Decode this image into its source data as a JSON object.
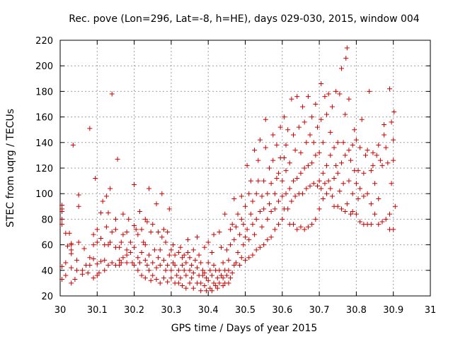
{
  "chart_data": {
    "type": "scatter",
    "title": "Rec. pove (Lon=296, Lat=-8, h=HE), days 029-030, 2015, window 004",
    "xlabel": "GPS time / Days of year 2015",
    "ylabel": "STEC from uqrg / TECUs",
    "xlim": [
      30,
      31
    ],
    "ylim": [
      20,
      220
    ],
    "xticks": [
      "30",
      "30.1",
      "30.2",
      "30.3",
      "30.4",
      "30.5",
      "30.6",
      "30.7",
      "30.8",
      "30.9",
      "31"
    ],
    "yticks": [
      "20",
      "40",
      "60",
      "80",
      "100",
      "120",
      "140",
      "160",
      "180",
      "200",
      "220"
    ],
    "grid": true,
    "marker": "+",
    "color": "#cc0000",
    "points": [
      [
        30.005,
        33
      ],
      [
        30.005,
        43
      ],
      [
        30.005,
        76
      ],
      [
        30.005,
        80
      ],
      [
        30.005,
        86
      ],
      [
        30.005,
        88
      ],
      [
        30.005,
        91
      ],
      [
        30.015,
        36
      ],
      [
        30.015,
        46
      ],
      [
        30.015,
        69
      ],
      [
        30.02,
        59
      ],
      [
        30.025,
        69
      ],
      [
        30.03,
        30
      ],
      [
        30.03,
        42
      ],
      [
        30.03,
        53
      ],
      [
        30.03,
        56
      ],
      [
        30.03,
        60
      ],
      [
        30.03,
        61
      ],
      [
        30.035,
        138
      ],
      [
        30.04,
        33
      ],
      [
        30.045,
        40
      ],
      [
        30.045,
        48
      ],
      [
        30.05,
        62
      ],
      [
        30.05,
        90
      ],
      [
        30.05,
        99
      ],
      [
        30.06,
        37
      ],
      [
        30.06,
        40
      ],
      [
        30.065,
        57
      ],
      [
        30.07,
        44
      ],
      [
        30.075,
        38
      ],
      [
        30.08,
        44
      ],
      [
        30.08,
        50
      ],
      [
        30.08,
        151
      ],
      [
        30.09,
        34
      ],
      [
        30.09,
        49
      ],
      [
        30.09,
        60
      ],
      [
        30.09,
        68
      ],
      [
        30.095,
        112
      ],
      [
        30.1,
        36
      ],
      [
        30.1,
        45
      ],
      [
        30.1,
        62
      ],
      [
        30.1,
        72
      ],
      [
        30.105,
        38
      ],
      [
        30.11,
        47
      ],
      [
        30.11,
        65
      ],
      [
        30.11,
        85
      ],
      [
        30.115,
        94
      ],
      [
        30.12,
        40
      ],
      [
        30.12,
        48
      ],
      [
        30.12,
        60
      ],
      [
        30.125,
        74
      ],
      [
        30.125,
        98
      ],
      [
        30.13,
        44
      ],
      [
        30.13,
        60
      ],
      [
        30.13,
        85
      ],
      [
        30.135,
        62
      ],
      [
        30.135,
        104
      ],
      [
        30.14,
        46
      ],
      [
        30.14,
        70
      ],
      [
        30.14,
        178
      ],
      [
        30.15,
        44
      ],
      [
        30.15,
        58
      ],
      [
        30.15,
        72
      ],
      [
        30.15,
        80
      ],
      [
        30.155,
        127
      ],
      [
        30.16,
        44
      ],
      [
        30.16,
        48
      ],
      [
        30.16,
        58
      ],
      [
        30.165,
        46
      ],
      [
        30.165,
        62
      ],
      [
        30.17,
        50
      ],
      [
        30.17,
        68
      ],
      [
        30.17,
        84
      ],
      [
        30.18,
        46
      ],
      [
        30.18,
        52
      ],
      [
        30.18,
        56
      ],
      [
        30.18,
        70
      ],
      [
        30.185,
        80
      ],
      [
        30.19,
        54
      ],
      [
        30.19,
        62
      ],
      [
        30.195,
        46
      ],
      [
        30.2,
        44
      ],
      [
        30.2,
        58
      ],
      [
        30.2,
        75
      ],
      [
        30.2,
        107
      ],
      [
        30.205,
        72
      ],
      [
        30.21,
        40
      ],
      [
        30.21,
        50
      ],
      [
        30.21,
        68
      ],
      [
        30.215,
        46
      ],
      [
        30.215,
        86
      ],
      [
        30.22,
        36
      ],
      [
        30.22,
        54
      ],
      [
        30.22,
        72
      ],
      [
        30.225,
        62
      ],
      [
        30.23,
        34
      ],
      [
        30.23,
        48
      ],
      [
        30.23,
        60
      ],
      [
        30.23,
        80
      ],
      [
        30.235,
        44
      ],
      [
        30.235,
        78
      ],
      [
        30.24,
        40
      ],
      [
        30.24,
        52
      ],
      [
        30.24,
        104
      ],
      [
        30.245,
        32
      ],
      [
        30.245,
        70
      ],
      [
        30.25,
        36
      ],
      [
        30.25,
        46
      ],
      [
        30.25,
        76
      ],
      [
        30.255,
        56
      ],
      [
        30.26,
        33
      ],
      [
        30.26,
        42
      ],
      [
        30.26,
        92
      ],
      [
        30.265,
        50
      ],
      [
        30.265,
        70
      ],
      [
        30.27,
        30
      ],
      [
        30.27,
        44
      ],
      [
        30.27,
        56
      ],
      [
        30.275,
        66
      ],
      [
        30.275,
        100
      ],
      [
        30.28,
        34
      ],
      [
        30.28,
        48
      ],
      [
        30.28,
        72
      ],
      [
        30.285,
        40
      ],
      [
        30.285,
        62
      ],
      [
        30.29,
        31
      ],
      [
        30.29,
        44
      ],
      [
        30.29,
        70
      ],
      [
        30.295,
        52
      ],
      [
        30.295,
        88
      ],
      [
        30.3,
        34
      ],
      [
        30.3,
        40
      ],
      [
        30.3,
        56
      ],
      [
        30.305,
        46
      ],
      [
        30.305,
        60
      ],
      [
        30.31,
        30
      ],
      [
        30.31,
        44
      ],
      [
        30.31,
        52
      ],
      [
        30.315,
        36
      ],
      [
        30.32,
        30
      ],
      [
        30.32,
        40
      ],
      [
        30.32,
        54
      ],
      [
        30.325,
        34
      ],
      [
        30.325,
        58
      ],
      [
        30.33,
        28
      ],
      [
        30.33,
        44
      ],
      [
        30.33,
        50
      ],
      [
        30.335,
        40
      ],
      [
        30.335,
        52
      ],
      [
        30.34,
        26
      ],
      [
        30.34,
        36
      ],
      [
        30.34,
        46
      ],
      [
        30.345,
        54
      ],
      [
        30.345,
        64
      ],
      [
        30.35,
        30
      ],
      [
        30.35,
        40
      ],
      [
        30.35,
        50
      ],
      [
        30.355,
        34
      ],
      [
        30.355,
        44
      ],
      [
        30.36,
        26
      ],
      [
        30.36,
        38
      ],
      [
        30.36,
        56
      ],
      [
        30.365,
        48
      ],
      [
        30.37,
        30
      ],
      [
        30.37,
        42
      ],
      [
        30.37,
        66
      ],
      [
        30.375,
        36
      ],
      [
        30.375,
        52
      ],
      [
        30.38,
        24
      ],
      [
        30.38,
        30
      ],
      [
        30.38,
        46
      ],
      [
        30.385,
        36
      ],
      [
        30.385,
        40
      ],
      [
        30.39,
        28
      ],
      [
        30.39,
        38
      ],
      [
        30.39,
        58
      ],
      [
        30.395,
        24
      ],
      [
        30.395,
        34
      ],
      [
        30.4,
        32
      ],
      [
        30.4,
        46
      ],
      [
        30.4,
        62
      ],
      [
        30.405,
        26
      ],
      [
        30.405,
        40
      ],
      [
        30.41,
        24
      ],
      [
        30.41,
        36
      ],
      [
        30.41,
        54
      ],
      [
        30.415,
        30
      ],
      [
        30.415,
        44
      ],
      [
        30.415,
        68
      ],
      [
        30.42,
        28
      ],
      [
        30.42,
        40
      ],
      [
        30.425,
        26
      ],
      [
        30.425,
        34
      ],
      [
        30.43,
        30
      ],
      [
        30.43,
        40
      ],
      [
        30.43,
        70
      ],
      [
        30.435,
        36
      ],
      [
        30.435,
        58
      ],
      [
        30.44,
        28
      ],
      [
        30.44,
        34
      ],
      [
        30.44,
        46
      ],
      [
        30.445,
        30
      ],
      [
        30.445,
        40
      ],
      [
        30.445,
        84
      ],
      [
        30.45,
        36
      ],
      [
        30.45,
        56
      ],
      [
        30.455,
        30
      ],
      [
        30.455,
        40
      ],
      [
        30.455,
        48
      ],
      [
        30.46,
        34
      ],
      [
        30.46,
        60
      ],
      [
        30.46,
        72
      ],
      [
        30.465,
        38
      ],
      [
        30.465,
        76
      ],
      [
        30.47,
        44
      ],
      [
        30.47,
        64
      ],
      [
        30.47,
        96
      ],
      [
        30.475,
        46
      ],
      [
        30.475,
        74
      ],
      [
        30.48,
        54
      ],
      [
        30.48,
        84
      ],
      [
        30.485,
        44
      ],
      [
        30.485,
        68
      ],
      [
        30.49,
        50
      ],
      [
        30.49,
        80
      ],
      [
        30.49,
        98
      ],
      [
        30.495,
        60
      ],
      [
        30.495,
        76
      ],
      [
        30.5,
        48
      ],
      [
        30.5,
        66
      ],
      [
        30.5,
        90
      ],
      [
        30.505,
        72
      ],
      [
        30.505,
        122
      ],
      [
        30.51,
        50
      ],
      [
        30.51,
        64
      ],
      [
        30.51,
        100
      ],
      [
        30.515,
        84
      ],
      [
        30.515,
        110
      ],
      [
        30.52,
        52
      ],
      [
        30.52,
        76
      ],
      [
        30.52,
        94
      ],
      [
        30.525,
        68
      ],
      [
        30.525,
        134
      ],
      [
        30.53,
        56
      ],
      [
        30.53,
        80
      ],
      [
        30.53,
        100
      ],
      [
        30.535,
        110
      ],
      [
        30.535,
        126
      ],
      [
        30.54,
        58
      ],
      [
        30.54,
        86
      ],
      [
        30.54,
        142
      ],
      [
        30.545,
        74
      ],
      [
        30.545,
        98
      ],
      [
        30.55,
        60
      ],
      [
        30.55,
        88
      ],
      [
        30.55,
        110
      ],
      [
        30.555,
        136
      ],
      [
        30.555,
        158
      ],
      [
        30.56,
        64
      ],
      [
        30.56,
        80
      ],
      [
        30.56,
        100
      ],
      [
        30.565,
        92
      ],
      [
        30.565,
        120
      ],
      [
        30.57,
        66
      ],
      [
        30.57,
        86
      ],
      [
        30.57,
        108
      ],
      [
        30.575,
        126
      ],
      [
        30.575,
        146
      ],
      [
        30.58,
        72
      ],
      [
        30.58,
        88
      ],
      [
        30.58,
        100
      ],
      [
        30.585,
        112
      ],
      [
        30.585,
        138
      ],
      [
        30.59,
        76
      ],
      [
        30.59,
        94
      ],
      [
        30.59,
        116
      ],
      [
        30.595,
        128
      ],
      [
        30.595,
        152
      ],
      [
        30.6,
        80
      ],
      [
        30.6,
        98
      ],
      [
        30.6,
        110
      ],
      [
        30.605,
        88
      ],
      [
        30.605,
        128
      ],
      [
        30.605,
        160
      ],
      [
        30.61,
        100
      ],
      [
        30.61,
        118
      ],
      [
        30.61,
        138
      ],
      [
        30.615,
        88
      ],
      [
        30.615,
        150
      ],
      [
        30.62,
        76
      ],
      [
        30.62,
        104
      ],
      [
        30.62,
        124
      ],
      [
        30.625,
        94
      ],
      [
        30.625,
        174
      ],
      [
        30.63,
        76
      ],
      [
        30.63,
        110
      ],
      [
        30.63,
        146
      ],
      [
        30.635,
        98
      ],
      [
        30.635,
        134
      ],
      [
        30.64,
        72
      ],
      [
        30.64,
        112
      ],
      [
        30.64,
        176
      ],
      [
        30.645,
        100
      ],
      [
        30.645,
        152
      ],
      [
        30.65,
        74
      ],
      [
        30.65,
        116
      ],
      [
        30.65,
        132
      ],
      [
        30.655,
        100
      ],
      [
        30.655,
        168
      ],
      [
        30.66,
        72
      ],
      [
        30.66,
        120
      ],
      [
        30.66,
        156
      ],
      [
        30.665,
        104
      ],
      [
        30.665,
        140
      ],
      [
        30.67,
        74
      ],
      [
        30.67,
        122
      ],
      [
        30.67,
        176
      ],
      [
        30.675,
        106
      ],
      [
        30.675,
        146
      ],
      [
        30.68,
        76
      ],
      [
        30.68,
        124
      ],
      [
        30.68,
        160
      ],
      [
        30.685,
        108
      ],
      [
        30.685,
        140
      ],
      [
        30.69,
        80
      ],
      [
        30.69,
        130
      ],
      [
        30.69,
        170
      ],
      [
        30.695,
        106
      ],
      [
        30.695,
        152
      ],
      [
        30.7,
        88
      ],
      [
        30.7,
        110
      ],
      [
        30.7,
        132
      ],
      [
        30.705,
        104
      ],
      [
        30.705,
        158
      ],
      [
        30.705,
        186
      ],
      [
        30.71,
        96
      ],
      [
        30.71,
        116
      ],
      [
        30.71,
        140
      ],
      [
        30.715,
        108
      ],
      [
        30.715,
        176
      ],
      [
        30.72,
        100
      ],
      [
        30.72,
        122
      ],
      [
        30.72,
        162
      ],
      [
        30.725,
        110
      ],
      [
        30.725,
        178
      ],
      [
        30.73,
        104
      ],
      [
        30.73,
        130
      ],
      [
        30.73,
        148
      ],
      [
        30.735,
        98
      ],
      [
        30.735,
        168
      ],
      [
        30.74,
        90
      ],
      [
        30.74,
        112
      ],
      [
        30.74,
        136
      ],
      [
        30.745,
        122
      ],
      [
        30.745,
        180
      ],
      [
        30.75,
        90
      ],
      [
        30.75,
        116
      ],
      [
        30.75,
        140
      ],
      [
        30.755,
        102
      ],
      [
        30.755,
        178
      ],
      [
        30.76,
        88
      ],
      [
        30.76,
        124
      ],
      [
        30.76,
        198
      ],
      [
        30.765,
        108
      ],
      [
        30.765,
        140
      ],
      [
        30.77,
        86
      ],
      [
        30.77,
        130
      ],
      [
        30.77,
        162
      ],
      [
        30.772,
        206
      ],
      [
        30.775,
        214
      ],
      [
        30.775,
        92
      ],
      [
        30.78,
        110
      ],
      [
        30.78,
        134
      ],
      [
        30.78,
        174
      ],
      [
        30.785,
        84
      ],
      [
        30.785,
        126
      ],
      [
        30.79,
        86
      ],
      [
        30.79,
        100
      ],
      [
        30.79,
        138
      ],
      [
        30.795,
        118
      ],
      [
        30.795,
        150
      ],
      [
        30.8,
        84
      ],
      [
        30.8,
        108
      ],
      [
        30.8,
        142
      ],
      [
        30.805,
        96
      ],
      [
        30.805,
        118
      ],
      [
        30.81,
        78
      ],
      [
        30.81,
        104
      ],
      [
        30.81,
        136
      ],
      [
        30.815,
        158
      ],
      [
        30.82,
        76
      ],
      [
        30.82,
        98
      ],
      [
        30.82,
        116
      ],
      [
        30.825,
        130
      ],
      [
        30.83,
        76
      ],
      [
        30.83,
        100
      ],
      [
        30.83,
        134
      ],
      [
        30.835,
        180
      ],
      [
        30.84,
        76
      ],
      [
        30.84,
        92
      ],
      [
        30.84,
        118
      ],
      [
        30.845,
        122
      ],
      [
        30.845,
        132
      ],
      [
        30.85,
        84
      ],
      [
        30.85,
        108
      ],
      [
        30.855,
        130
      ],
      [
        30.86,
        76
      ],
      [
        30.86,
        96
      ],
      [
        30.86,
        138
      ],
      [
        30.865,
        126
      ],
      [
        30.87,
        78
      ],
      [
        30.87,
        122
      ],
      [
        30.875,
        154
      ],
      [
        30.875,
        146
      ],
      [
        30.88,
        80
      ],
      [
        30.88,
        136
      ],
      [
        30.885,
        124
      ],
      [
        30.89,
        72
      ],
      [
        30.89,
        84
      ],
      [
        30.89,
        182
      ],
      [
        30.895,
        156
      ],
      [
        30.895,
        108
      ],
      [
        30.9,
        72
      ],
      [
        30.9,
        126
      ],
      [
        30.9,
        142
      ],
      [
        30.902,
        164
      ],
      [
        30.905,
        90
      ]
    ]
  }
}
